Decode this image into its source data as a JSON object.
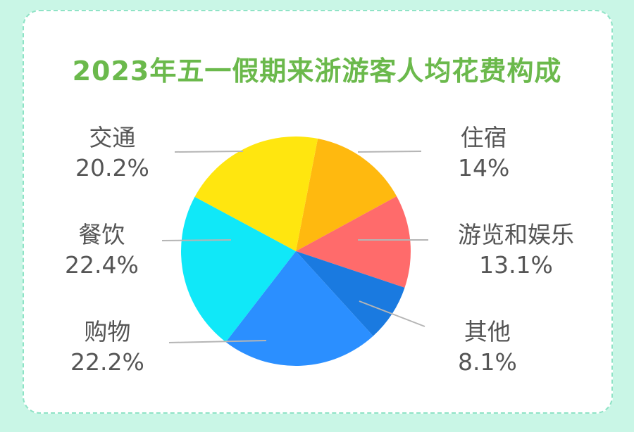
{
  "chart_data": {
    "type": "pie",
    "title": "2023年五一假期来浙游客人均花费构成",
    "slices": [
      {
        "label": "住宿",
        "value": 14,
        "value_label": "14%",
        "color": "#ffb90f"
      },
      {
        "label": "游览和娱乐",
        "value": 13.1,
        "value_label": "13.1%",
        "color": "#ff6b6b"
      },
      {
        "label": "其他",
        "value": 8.1,
        "value_label": "8.1%",
        "color": "#1a7ae0"
      },
      {
        "label": "购物",
        "value": 22.2,
        "value_label": "22.2%",
        "color": "#2b8fff"
      },
      {
        "label": "餐饮",
        "value": 22.4,
        "value_label": "22.4%",
        "color": "#10e8f8"
      },
      {
        "label": "交通",
        "value": 20.2,
        "value_label": "20.2%",
        "color": "#ffe60f"
      }
    ]
  }
}
